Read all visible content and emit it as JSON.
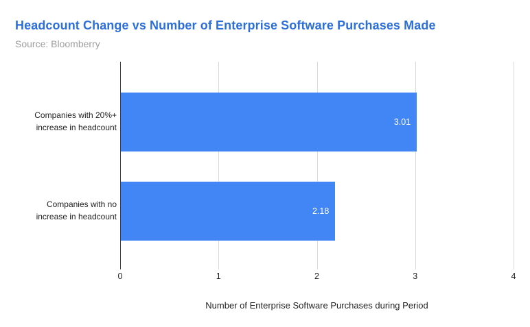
{
  "chart_data": {
    "type": "bar",
    "orientation": "horizontal",
    "title": "Headcount Change vs Number of Enterprise Software Purchases Made",
    "subtitle": "Source: Bloomberry",
    "categories": [
      "Companies with 20%+ increase in headcount",
      "Companies with no increase in headcount"
    ],
    "category_lines": [
      {
        "line1": "Companies with 20%+",
        "line2": "increase in headcount"
      },
      {
        "line1": "Companies with no",
        "line2": "increase in headcount"
      }
    ],
    "values": [
      3.01,
      2.18
    ],
    "value_labels": [
      "3.01",
      "2.18"
    ],
    "xlabel": "Number of Enterprise Software Purchases during Period",
    "xlim": [
      0,
      4
    ],
    "xticks": [
      "0",
      "1",
      "2",
      "3",
      "4"
    ],
    "grid": true,
    "legend": false,
    "bar_color": "#4285f4",
    "title_color": "#2d6fd9",
    "subtitle_color": "#9e9e9e"
  }
}
